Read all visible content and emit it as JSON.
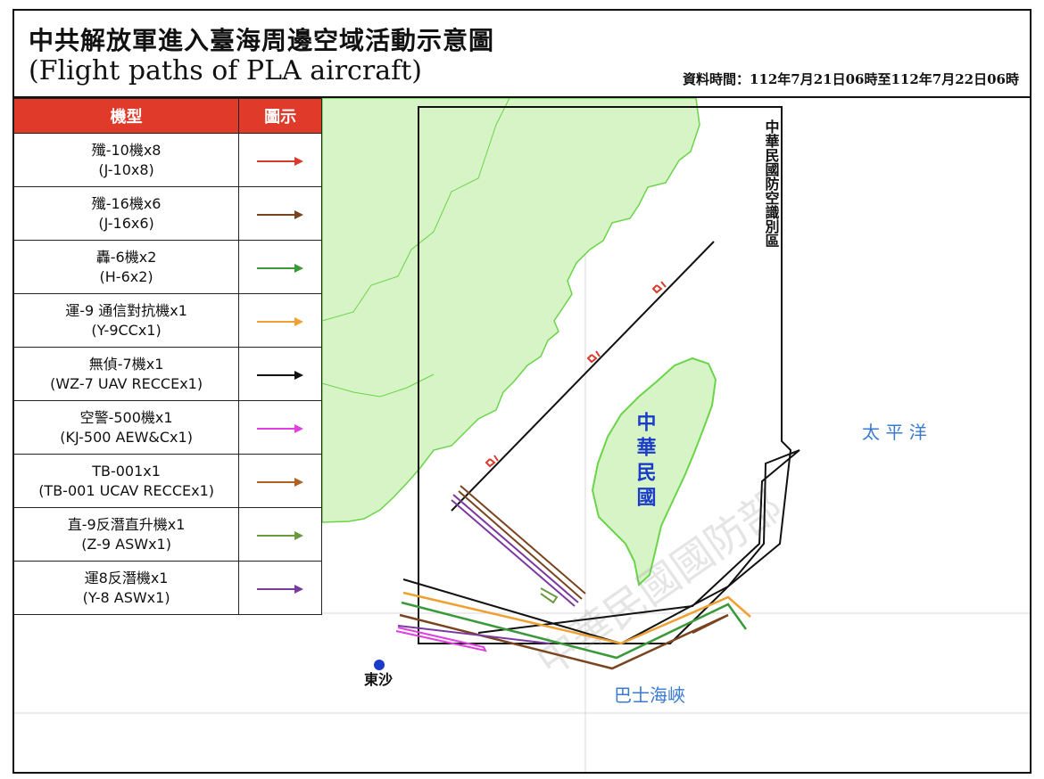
{
  "header": {
    "title_zh": "中共解放軍進入臺海周邊空域活動示意圖",
    "title_en": "(Flight paths of PLA aircraft)",
    "data_time": "資料時間：112年7月21日06時至112年7月22日06時"
  },
  "legend": {
    "col_type": "機型",
    "col_symbol": "圖示",
    "items": [
      {
        "zh": "殲-10機x8",
        "en": "(J-10x8)",
        "color": "#d93a2b"
      },
      {
        "zh": "殲-16機x6",
        "en": "(J-16x6)",
        "color": "#7a4420"
      },
      {
        "zh": "轟-6機x2",
        "en": "(H-6x2)",
        "color": "#3a9a3a"
      },
      {
        "zh": "運-9 通信對抗機x1",
        "en": "(Y-9CCx1)",
        "color": "#f0a030"
      },
      {
        "zh": "無偵-7機x1",
        "en": "(WZ-7 UAV RECCEx1)",
        "color": "#111111"
      },
      {
        "zh": "空警-500機x1",
        "en": "(KJ-500 AEW&Cx1)",
        "color": "#e040e0"
      },
      {
        "zh": "TB-001x1",
        "en": "(TB-001 UCAV RECCEx1)",
        "color": "#b06020"
      },
      {
        "zh": "直-9反潛直升機x1",
        "en": "(Z-9 ASWx1)",
        "color": "#6a9a40"
      },
      {
        "zh": "運8反潛機x1",
        "en": "(Y-8 ASWx1)",
        "color": "#7a3aa0"
      }
    ]
  },
  "map": {
    "adiz_label": "中華民國防空識別區",
    "taiwan_label": "中華民國",
    "pacific_label": "太 平 洋",
    "bashi_label": "巴士海峽",
    "dongsha_label": "東沙",
    "watermark": "中華民國國防部",
    "colors": {
      "land": "#d6f4c6",
      "coast": "#6bd44a",
      "label_blue": "#1a3cc8",
      "sea_label": "#3a7ad0"
    }
  }
}
